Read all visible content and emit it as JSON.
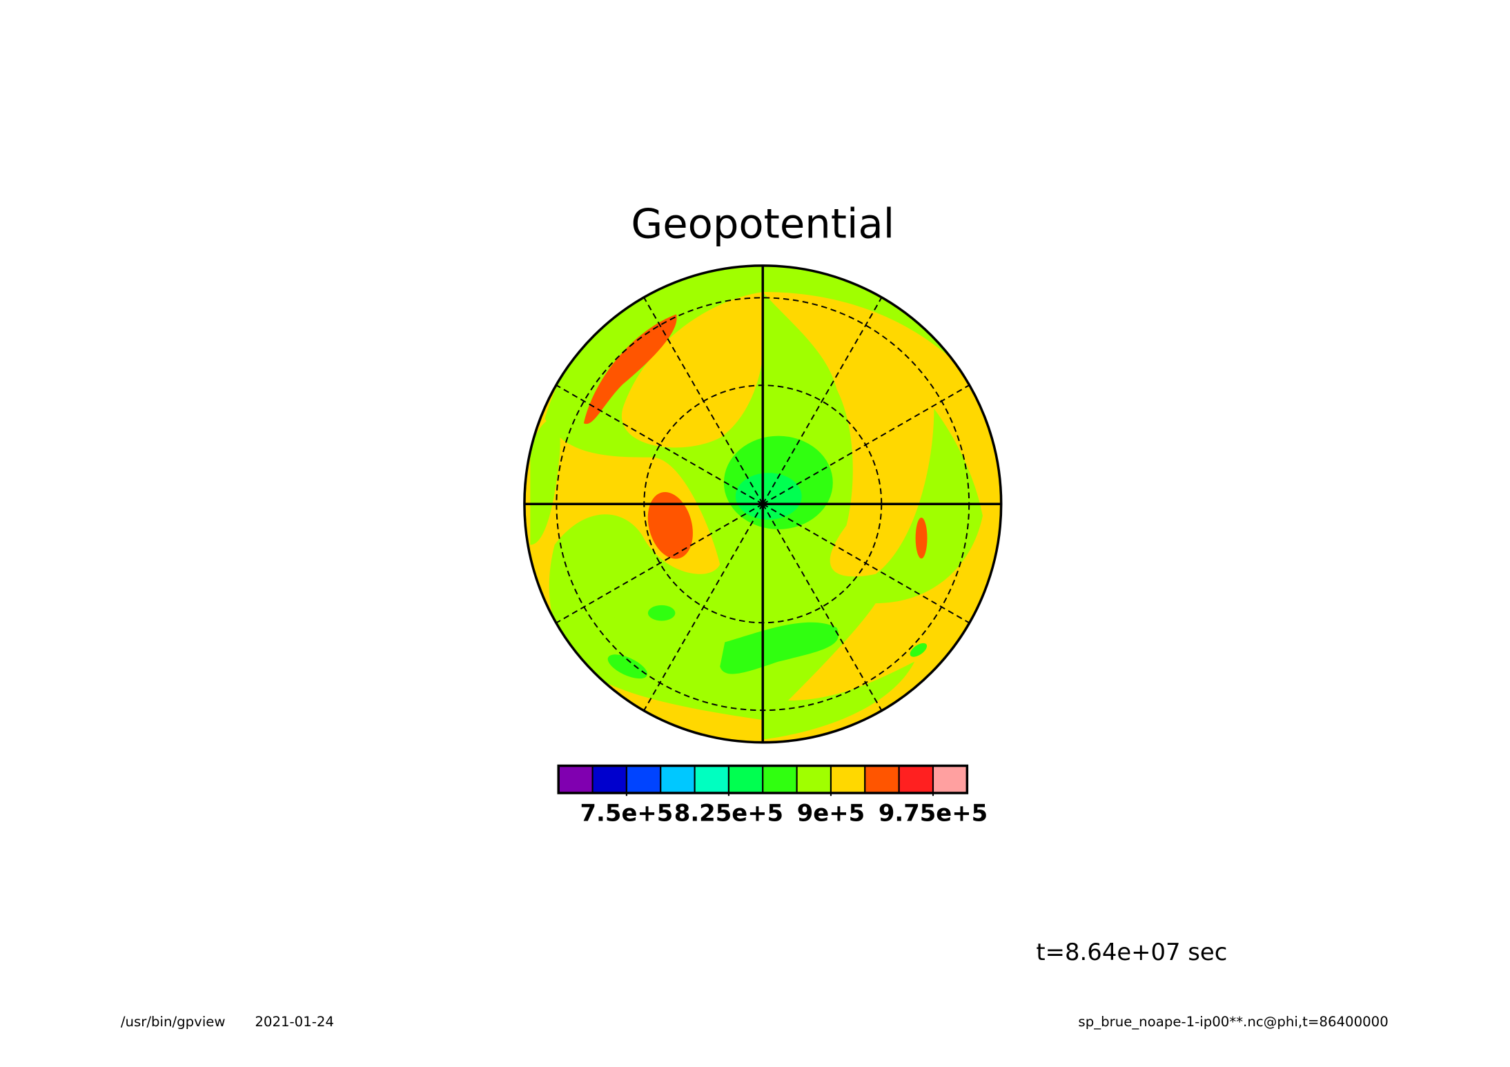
{
  "chart_data": {
    "type": "contour",
    "title": "Geopotential",
    "colorbar": {
      "colors": [
        "#8000b0",
        "#0000cd",
        "#0044ff",
        "#00c8ff",
        "#00ffc0",
        "#00ff50",
        "#30ff10",
        "#a0ff00",
        "#ffd800",
        "#ff5500",
        "#ff2020",
        "#ffa0a0"
      ],
      "lim": [
        700000,
        1000000
      ],
      "ticks": [
        {
          "value": 750000,
          "label": "7.5e+5"
        },
        {
          "value": 825000,
          "label": "8.25e+5"
        },
        {
          "value": 900000,
          "label": "9e+5"
        },
        {
          "value": 975000,
          "label": "9.75e+5"
        }
      ]
    },
    "time_label": "t=8.64e+07 sec",
    "footer_left": "/usr/bin/gpview",
    "footer_date": "2021-01-24",
    "footer_right": "sp_brue_noape-1-ip00**.nc@phi,t=86400000"
  }
}
